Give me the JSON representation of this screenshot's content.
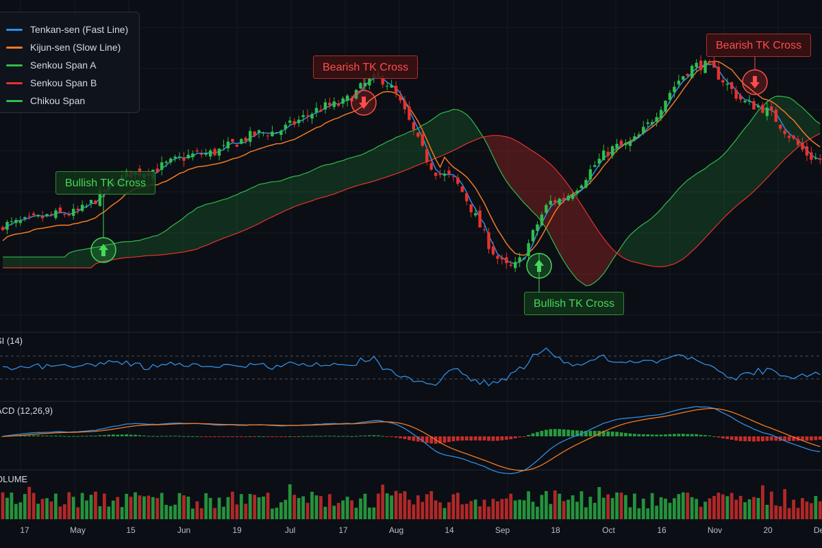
{
  "legend": [
    {
      "label": "Tenkan-sen (Fast Line)",
      "color": "#2f8fe8"
    },
    {
      "label": "Kijun-sen (Slow Line)",
      "color": "#f57a24"
    },
    {
      "label": "Senkou Span A",
      "color": "#2fbf4a"
    },
    {
      "label": "Senkou Span B",
      "color": "#e8322f"
    },
    {
      "label": "Chikou Span",
      "color": "#2fbf4a"
    }
  ],
  "annotations": {
    "bullish_1": "Bullish TK Cross",
    "bearish_1": "Bearish TK Cross",
    "bullish_2": "Bullish TK Cross",
    "bearish_2": "Bearish TK Cross"
  },
  "panes": {
    "rsi_label": "SI (14)",
    "macd_label": "ACD (12,26,9)",
    "volume_label": "OLUME"
  },
  "colors": {
    "up": "#2fbf4a",
    "down": "#e8322f",
    "tenkan": "#2f8fe8",
    "kijun": "#f57a24",
    "rsi": "#2f8fe8",
    "macd": "#2f8fe8",
    "signal": "#f57a24"
  },
  "chart_data": {
    "type": "candlestick",
    "x_tick_labels": [
      "17",
      "May",
      "15",
      "Jun",
      "19",
      "Jul",
      "17",
      "Aug",
      "14",
      "Sep",
      "18",
      "Oct",
      "16",
      "Nov",
      "20",
      "Dec"
    ],
    "price_keypoints": [
      [
        0,
        36
      ],
      [
        15,
        40
      ],
      [
        30,
        55
      ],
      [
        45,
        62
      ],
      [
        60,
        70
      ],
      [
        75,
        80
      ],
      [
        85,
        90
      ],
      [
        100,
        54
      ],
      [
        115,
        20
      ],
      [
        125,
        45
      ],
      [
        140,
        65
      ],
      [
        158,
        95
      ],
      [
        170,
        80
      ],
      [
        185,
        60
      ]
    ],
    "tenkan_lag": 2,
    "kijun_lag": 6,
    "span_a_offset": 14,
    "span_b_offset": 20,
    "rsi": {
      "overbought": 70,
      "oversold": 30
    },
    "volume": {
      "max": 100
    }
  }
}
